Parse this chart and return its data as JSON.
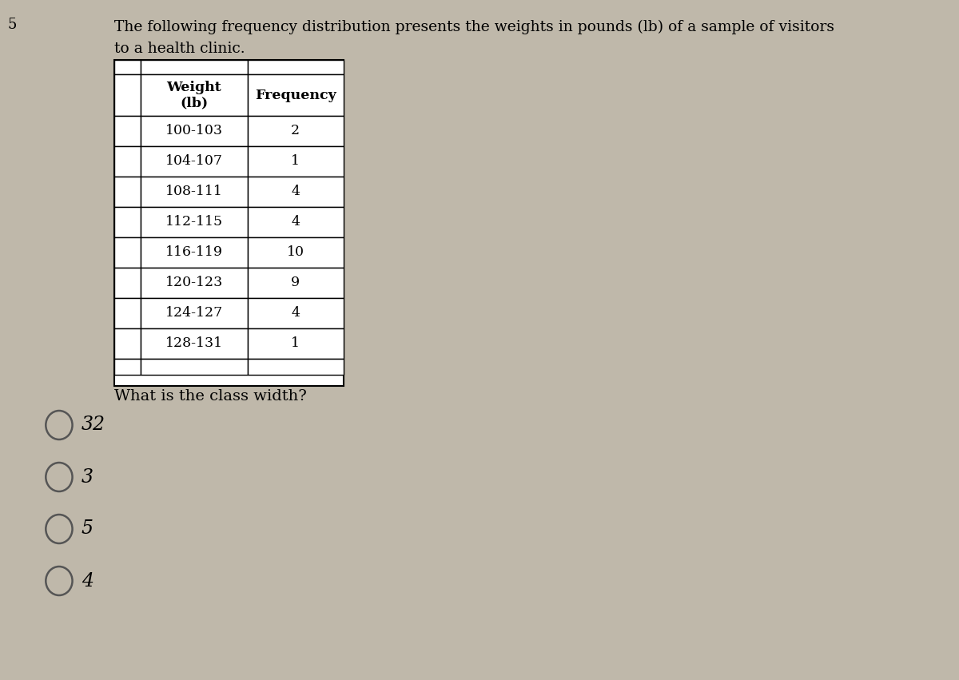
{
  "title_line1": "The following frequency distribution presents the weights in pounds (lb) of a sample of visitors",
  "title_line2": "to a health clinic.",
  "table_header": [
    "Weight\n(lb)",
    "Frequency"
  ],
  "table_rows": [
    [
      "100-103",
      "2"
    ],
    [
      "104-107",
      "1"
    ],
    [
      "108-111",
      "4"
    ],
    [
      "112-115",
      "4"
    ],
    [
      "116-119",
      "10"
    ],
    [
      "120-123",
      "9"
    ],
    [
      "124-127",
      "4"
    ],
    [
      "128-131",
      "1"
    ]
  ],
  "question": "What is the class width?",
  "options": [
    "32",
    "3",
    "5",
    "4"
  ],
  "bg_color": "#bfb8aa",
  "table_bg": "#ffffff",
  "table_border": "#000000",
  "title_fontsize": 13.5,
  "table_fontsize": 12.5,
  "question_fontsize": 14,
  "option_fontsize": 15,
  "page_number": "5"
}
